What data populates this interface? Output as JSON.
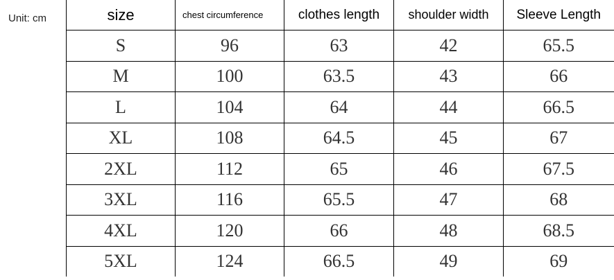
{
  "unit_label": "Unit: cm",
  "headers": [
    "size",
    "chest circumference",
    "clothes length",
    "shoulder width",
    "Sleeve Length"
  ],
  "rows": [
    [
      "S",
      "96",
      "63",
      "42",
      "65.5"
    ],
    [
      "M",
      "100",
      "63.5",
      "43",
      "66"
    ],
    [
      "L",
      "104",
      "64",
      "44",
      "66.5"
    ],
    [
      "XL",
      "108",
      "64.5",
      "45",
      "67"
    ],
    [
      "2XL",
      "112",
      "65",
      "46",
      "67.5"
    ],
    [
      "3XL",
      "116",
      "65.5",
      "47",
      "68"
    ],
    [
      "4XL",
      "120",
      "66",
      "48",
      "68.5"
    ],
    [
      "5XL",
      "124",
      "66.5",
      "49",
      "69"
    ]
  ]
}
